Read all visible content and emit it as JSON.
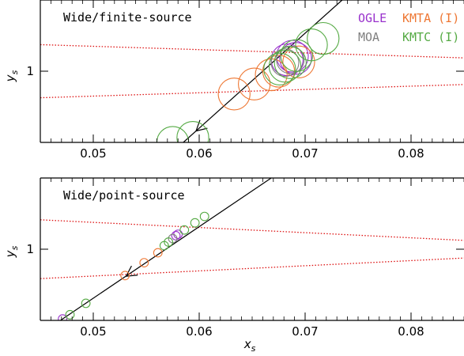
{
  "chart_data": [
    {
      "type": "scatter",
      "title": "Wide/finite-source",
      "xlabel": "",
      "ylabel": "y_s",
      "ylabel_main": "y",
      "ylabel_sub": "s",
      "xlim": [
        0.045,
        0.085
      ],
      "ylim": [
        0.9,
        1.1
      ],
      "xticks": [
        0.05,
        0.06,
        0.07,
        0.08
      ],
      "xtick_labels": [
        "0.05",
        "0.06",
        "0.07",
        "0.08"
      ],
      "yticks": [
        1.0
      ],
      "ytick_labels": [
        "1"
      ],
      "grid": false,
      "legend_position": "top-right",
      "legend": [
        {
          "label": "OGLE",
          "color": "#9932CC"
        },
        {
          "label": "KMTA (I)",
          "color": "#EE7733"
        },
        {
          "label": "MOA",
          "color": "#808080"
        },
        {
          "label": "KMTC (I)",
          "color": "#55AA44"
        }
      ],
      "trajectory": {
        "x": [
          0.0585,
          0.0735
        ],
        "y": [
          0.9,
          1.1
        ],
        "arrow_at": [
          0.0597,
          0.916
        ],
        "color": "#000000"
      },
      "caustics": {
        "color": "#DD1111",
        "style": "dotted",
        "upper": {
          "x": [
            0.045,
            0.085
          ],
          "y": [
            1.0373,
            1.0187
          ]
        },
        "lower": {
          "x": [
            0.045,
            0.085
          ],
          "y": [
            0.9627,
            0.9813
          ]
        }
      },
      "series": [
        {
          "name": "OGLE",
          "color": "#9932CC",
          "points": [
            [
              0.0683,
              1.016,
              0.0015
            ],
            [
              0.0688,
              1.021,
              0.0015
            ],
            [
              0.0691,
              1.018,
              0.0015
            ]
          ]
        },
        {
          "name": "KMTA (I)",
          "color": "#EE7733",
          "points": [
            [
              0.0633,
              0.968,
              0.0015
            ],
            [
              0.0652,
              0.982,
              0.0015
            ],
            [
              0.0668,
              0.995,
              0.0015
            ],
            [
              0.0675,
              1.0,
              0.0015
            ],
            [
              0.0694,
              1.013,
              0.0015
            ]
          ]
        },
        {
          "name": "MOA",
          "color": "#808080",
          "points": [
            [
              0.0681,
              1.012,
              0.0013
            ],
            [
              0.0686,
              1.016,
              0.0013
            ]
          ]
        },
        {
          "name": "KMTC (I)",
          "color": "#55AA44",
          "points": [
            [
              0.0575,
              0.9,
              0.0015
            ],
            [
              0.0594,
              0.907,
              0.0015
            ],
            [
              0.0676,
              1.003,
              0.0015
            ],
            [
              0.0681,
              1.007,
              0.0015
            ],
            [
              0.0686,
              1.012,
              0.0015
            ],
            [
              0.0692,
              1.022,
              0.0015
            ],
            [
              0.0706,
              1.037,
              0.0015
            ],
            [
              0.0717,
              1.046,
              0.0015
            ]
          ]
        }
      ]
    },
    {
      "type": "scatter",
      "title": "Wide/point-source",
      "xlabel": "x_s",
      "xlabel_main": "x",
      "xlabel_sub": "s",
      "ylabel": "y_s",
      "ylabel_main": "y",
      "ylabel_sub": "s",
      "xlim": [
        0.045,
        0.085
      ],
      "ylim": [
        0.9,
        1.1
      ],
      "xticks": [
        0.05,
        0.06,
        0.07,
        0.08
      ],
      "xtick_labels": [
        "0.05",
        "0.06",
        "0.07",
        "0.08"
      ],
      "yticks": [
        1.0
      ],
      "ytick_labels": [
        "1"
      ],
      "grid": false,
      "trajectory": {
        "x": [
          0.0469,
          0.0668
        ],
        "y": [
          0.9,
          1.1
        ],
        "arrow_at": [
          0.0531,
          0.962
        ],
        "color": "#000000"
      },
      "caustics": {
        "color": "#DD1111",
        "style": "dotted",
        "upper": {
          "x": [
            0.045,
            0.085
          ],
          "y": [
            1.0413,
            1.0124
          ]
        },
        "lower": {
          "x": [
            0.045,
            0.085
          ],
          "y": [
            0.9587,
            0.9876
          ]
        }
      },
      "series": [
        {
          "name": "OGLE",
          "color": "#9932CC",
          "points": [
            [
              0.0471,
              0.902,
              0.0004
            ],
            [
              0.0578,
              1.019,
              0.0004
            ],
            [
              0.058,
              1.021,
              0.0004
            ]
          ]
        },
        {
          "name": "KMTA (I)",
          "color": "#EE7733",
          "points": [
            [
              0.053,
              0.963,
              0.0004
            ],
            [
              0.0548,
              0.981,
              0.0004
            ],
            [
              0.0561,
              0.995,
              0.0004
            ]
          ]
        },
        {
          "name": "MOA",
          "color": "#808080",
          "points": [
            [
              0.0575,
              1.015,
              0.0004
            ]
          ]
        },
        {
          "name": "KMTC (I)",
          "color": "#55AA44",
          "points": [
            [
              0.0478,
              0.908,
              0.0004
            ],
            [
              0.0493,
              0.924,
              0.0004
            ],
            [
              0.0567,
              1.005,
              0.0004
            ],
            [
              0.0571,
              1.01,
              0.0004
            ],
            [
              0.0586,
              1.027,
              0.0004
            ],
            [
              0.0596,
              1.037,
              0.0004
            ],
            [
              0.0605,
              1.046,
              0.0004
            ]
          ]
        }
      ]
    }
  ]
}
